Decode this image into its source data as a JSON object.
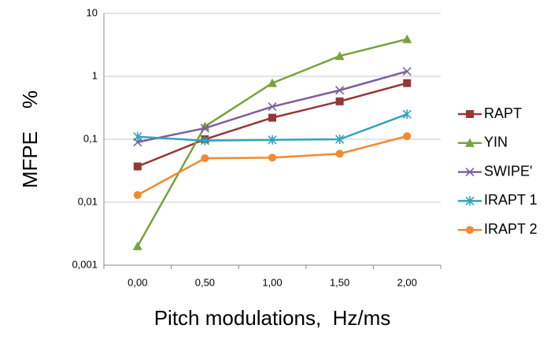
{
  "chart_data": {
    "type": "line",
    "x_label": "Pitch modulations,  Hz/ms",
    "y_label": "MFPE    %",
    "categories": [
      "0,00",
      "0,50",
      "1,00",
      "1,50",
      "2,00"
    ],
    "log_y": true,
    "grid": true,
    "legend": "right",
    "ylim": [
      0.001,
      10
    ],
    "yticks": [
      {
        "value": 0.001,
        "label": "0,001"
      },
      {
        "value": 0.01,
        "label": "0,01"
      },
      {
        "value": 0.1,
        "label": "0,1"
      },
      1,
      10
    ],
    "series": [
      {
        "name": "RAPT",
        "color": "#953735",
        "marker": "square",
        "values": [
          0.037,
          0.1,
          0.22,
          0.4,
          0.78
        ]
      },
      {
        "name": "YIN",
        "color": "#77a33c",
        "marker": "triangle",
        "values": [
          0.002,
          0.16,
          0.78,
          2.1,
          3.9
        ]
      },
      {
        "name": "SWIPE'",
        "color": "#7d5fa0",
        "marker": "x",
        "values": [
          0.09,
          0.15,
          0.33,
          0.6,
          1.2
        ]
      },
      {
        "name": "IRAPT 1",
        "color": "#31a3b8",
        "marker": "star",
        "values": [
          0.11,
          0.095,
          0.098,
          0.1,
          0.25
        ]
      },
      {
        "name": "IRAPT 2",
        "color": "#f08a2c",
        "marker": "circle",
        "values": [
          0.013,
          0.05,
          0.051,
          0.059,
          0.112
        ]
      }
    ]
  }
}
